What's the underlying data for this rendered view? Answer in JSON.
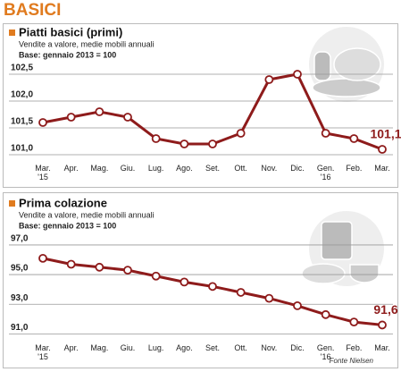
{
  "header": "BASICI",
  "source": "Fonte Nielsen",
  "chart_data": [
    {
      "type": "line",
      "title": "Piatti basici (primi)",
      "subtitle": "Vendite a valore, medie mobili annuali",
      "note": "Base: gennaio 2013 = 100",
      "categories": [
        "Mar.\n'15",
        "Apr.",
        "Mag.",
        "Giu.",
        "Lug.",
        "Ago.",
        "Set.",
        "Ott.",
        "Nov.",
        "Dic.",
        "Gen.\n'16",
        "Feb.",
        "Mar."
      ],
      "values": [
        101.6,
        101.7,
        101.8,
        101.7,
        101.3,
        101.2,
        101.2,
        101.4,
        102.4,
        102.5,
        101.4,
        101.3,
        101.1
      ],
      "value_labels": [
        null,
        null,
        null,
        null,
        null,
        null,
        null,
        null,
        null,
        null,
        null,
        null,
        "101,1"
      ],
      "color": "#8e1b1b",
      "ylim": [
        100.9,
        102.7
      ],
      "yticks": [
        {
          "value": 101,
          "label": "101,0"
        },
        {
          "value": 101.5,
          "label": "101,5"
        },
        {
          "value": 102,
          "label": "102,0"
        },
        {
          "value": 102.5,
          "label": "102,5"
        }
      ],
      "grid": true
    },
    {
      "type": "line",
      "title": "Prima colazione",
      "subtitle": "Vendite a valore, medie mobili annuali",
      "note": "Base: gennaio 2013 = 100",
      "categories": [
        "Mar.\n'15",
        "Apr.",
        "Mag.",
        "Giu.",
        "Lug.",
        "Ago.",
        "Set.",
        "Ott.",
        "Nov.",
        "Dic.",
        "Gen.\n'16",
        "Feb.",
        "Mar."
      ],
      "values": [
        96.1,
        95.7,
        95.5,
        95.3,
        94.9,
        94.5,
        94.2,
        93.8,
        93.4,
        92.9,
        92.3,
        91.8,
        91.6
      ],
      "value_labels": [
        null,
        null,
        null,
        null,
        null,
        null,
        null,
        null,
        null,
        null,
        null,
        null,
        "91,6"
      ],
      "color": "#8e1b1b",
      "ylim": [
        90.6,
        97.6
      ],
      "yticks": [
        {
          "value": 91,
          "label": "91,0"
        },
        {
          "value": 93,
          "label": "93,0"
        },
        {
          "value": 95,
          "label": "95,0"
        },
        {
          "value": 97,
          "label": "97,0"
        }
      ],
      "grid": true
    }
  ]
}
